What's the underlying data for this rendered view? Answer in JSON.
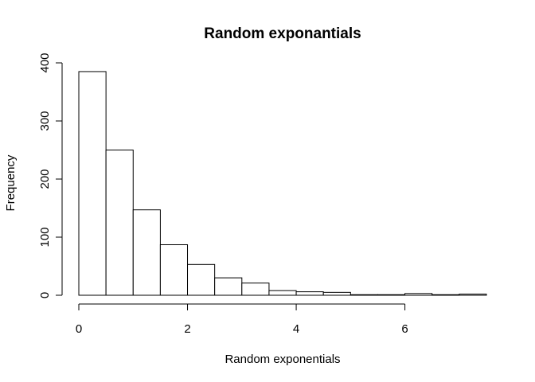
{
  "chart_data": {
    "type": "bar",
    "title": "Random exponantials",
    "xlabel": "Random exponentials",
    "ylabel": "Frequency",
    "bin_edges": [
      0,
      0.5,
      1,
      1.5,
      2,
      2.5,
      3,
      3.5,
      4,
      4.5,
      5,
      5.5,
      6,
      6.5,
      7,
      7.5
    ],
    "values": [
      385,
      250,
      147,
      87,
      53,
      30,
      21,
      8,
      6,
      5,
      1,
      1,
      3,
      1,
      2
    ],
    "xlim": [
      0,
      7.5
    ],
    "ylim": [
      0,
      400
    ],
    "xticks": [
      0,
      2,
      4,
      6
    ],
    "yticks": [
      0,
      100,
      200,
      300,
      400
    ],
    "grid": false,
    "colors": {
      "bar_fill": "#ffffff",
      "bar_stroke": "#000000"
    }
  }
}
